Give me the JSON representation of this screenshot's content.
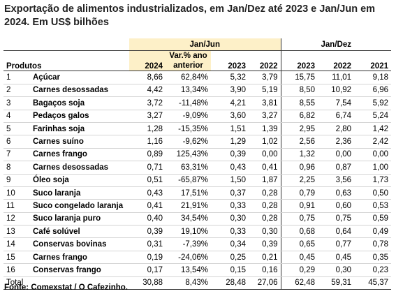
{
  "header": {
    "title": "Exportação de alimentos industrializados, em Jan/Dez até 2023 e Jan/Jun em 2024. Em US$ bilhões"
  },
  "table": {
    "groups": [
      "Jan/Jun",
      "Jan/Dez"
    ],
    "columns": [
      "Produtos",
      "2024",
      "Var.% ano anterior",
      "2023",
      "2022",
      "2023",
      "2022",
      "2021"
    ],
    "rows": [
      [
        "1",
        "Açúcar",
        "8,66",
        "62,84%",
        "5,32",
        "3,79",
        "15,75",
        "11,01",
        "9,18"
      ],
      [
        "2",
        "Carnes desossadas",
        "4,42",
        "13,34%",
        "3,90",
        "5,19",
        "8,50",
        "10,92",
        "6,96"
      ],
      [
        "3",
        "Bagaços soja",
        "3,72",
        "-11,48%",
        "4,21",
        "3,81",
        "8,55",
        "7,54",
        "5,92"
      ],
      [
        "4",
        "Pedaços galos",
        "3,27",
        "-9,09%",
        "3,60",
        "3,27",
        "6,82",
        "6,74",
        "5,24"
      ],
      [
        "5",
        "Farinhas soja",
        "1,28",
        "-15,35%",
        "1,51",
        "1,39",
        "2,95",
        "2,80",
        "1,42"
      ],
      [
        "6",
        "Carnes suíno",
        "1,16",
        "-9,62%",
        "1,29",
        "1,02",
        "2,56",
        "2,36",
        "2,42"
      ],
      [
        "7",
        "Carnes frango",
        "0,89",
        "125,43%",
        "0,39",
        "0,00",
        "1,32",
        "0,00",
        "0,00"
      ],
      [
        "8",
        "Carnes desossadas",
        "0,71",
        "63,31%",
        "0,43",
        "0,41",
        "0,96",
        "0,87",
        "1,00"
      ],
      [
        "9",
        "Óleo soja",
        "0,51",
        "-65,87%",
        "1,50",
        "1,87",
        "2,25",
        "3,56",
        "1,73"
      ],
      [
        "10",
        "Suco laranja",
        "0,43",
        "17,51%",
        "0,37",
        "0,28",
        "0,79",
        "0,63",
        "0,50"
      ],
      [
        "11",
        "Suco congelado laranja",
        "0,41",
        "21,91%",
        "0,33",
        "0,28",
        "0,91",
        "0,60",
        "0,53"
      ],
      [
        "12",
        "Suco laranja puro",
        "0,40",
        "34,54%",
        "0,30",
        "0,28",
        "0,75",
        "0,75",
        "0,59"
      ],
      [
        "13",
        "Café solúvel",
        "0,39",
        "19,10%",
        "0,33",
        "0,30",
        "0,68",
        "0,64",
        "0,49"
      ],
      [
        "14",
        "Conservas bovinas",
        "0,31",
        "-7,39%",
        "0,34",
        "0,39",
        "0,65",
        "0,77",
        "0,78"
      ],
      [
        "15",
        "Carnes frango",
        "0,19",
        "-24,06%",
        "0,25",
        "0,21",
        "0,45",
        "0,45",
        "0,35"
      ],
      [
        "16",
        "Conservas frango",
        "0,17",
        "13,54%",
        "0,15",
        "0,16",
        "0,29",
        "0,30",
        "0,23"
      ]
    ],
    "total": [
      "Total",
      "30,88",
      "8,43%",
      "28,48",
      "27,06",
      "62,48",
      "59,31",
      "45,37"
    ]
  },
  "footer": {
    "source": "Fonte: Comexstat / O Cafezinho."
  }
}
